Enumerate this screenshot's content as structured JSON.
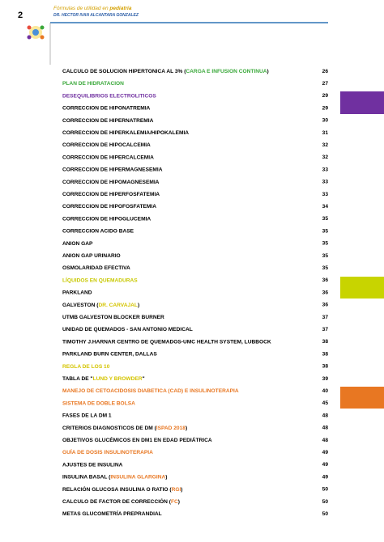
{
  "header": {
    "page": "2",
    "title": "Fórmulas de utilidad en ",
    "title_emphasis": "pediatría",
    "author": "DR. HECTOR IVAN ALCANTARA GONZALEZ"
  },
  "toc": [
    {
      "parts": [
        {
          "text": "CALCULO DE SOLUCION HIPERTONICA AL 3% ("
        },
        {
          "text": "CARGA E INFUSION CONTINUA",
          "color": "#3aa83a"
        },
        {
          "text": ")"
        }
      ],
      "page": 26
    },
    {
      "parts": [
        {
          "text": "PLAN DE HIDRATACION",
          "color": "#3aa83a"
        }
      ],
      "page": 27
    },
    {
      "parts": [
        {
          "text": "DESEQUILIBRIOS ELECTROLITICOS",
          "color": "#7030a0"
        }
      ],
      "page": 29
    },
    {
      "parts": [
        {
          "text": "CORRECCION DE HIPONATREMIA"
        }
      ],
      "page": 29
    },
    {
      "parts": [
        {
          "text": "CORRECCION DE HIPERNATREMIA"
        }
      ],
      "page": 30
    },
    {
      "parts": [
        {
          "text": "CORRECCION DE HIPERKALEMIA/HIPOKALEMIA"
        }
      ],
      "page": 31
    },
    {
      "parts": [
        {
          "text": "CORRECCION DE HIPOCALCEMIA"
        }
      ],
      "page": 32
    },
    {
      "parts": [
        {
          "text": "CORRECCION DE HIPERCALCEMIA"
        }
      ],
      "page": 32
    },
    {
      "parts": [
        {
          "text": "CORRECCION DE HIPERMAGNESEMIA"
        }
      ],
      "page": 33
    },
    {
      "parts": [
        {
          "text": "CORRECCION DE HIPOMAGNESEMIA"
        }
      ],
      "page": 33
    },
    {
      "parts": [
        {
          "text": "CORRECCION DE HIPERFOSFATEMIA"
        }
      ],
      "page": 33
    },
    {
      "parts": [
        {
          "text": "CORRECCION DE HIPOFOSFATEMIA"
        }
      ],
      "page": 34
    },
    {
      "parts": [
        {
          "text": "CORRECCION DE HIPOGLUCEMIA"
        }
      ],
      "page": 35
    },
    {
      "parts": [
        {
          "text": "CORRECCION ACIDO BASE"
        }
      ],
      "page": 35
    },
    {
      "parts": [
        {
          "text": "ANION GAP"
        }
      ],
      "page": 35
    },
    {
      "parts": [
        {
          "text": "ANION GAP URINARIO"
        }
      ],
      "page": 35
    },
    {
      "parts": [
        {
          "text": "OSMOLARIDAD EFECTIVA"
        }
      ],
      "page": 35
    },
    {
      "parts": [
        {
          "text": "LÍQUIDOS EN QUEMADURAS",
          "color": "#c8c800"
        }
      ],
      "page": 36
    },
    {
      "parts": [
        {
          "text": "PARKLAND"
        }
      ],
      "page": 36
    },
    {
      "parts": [
        {
          "text": "GALVESTON ("
        },
        {
          "text": "DR. CARVAJAL",
          "color": "#d4c400"
        },
        {
          "text": ")"
        }
      ],
      "page": 36
    },
    {
      "parts": [
        {
          "text": "UTMB GALVESTON BLOCKER BURNER"
        }
      ],
      "page": 37
    },
    {
      "parts": [
        {
          "text": "UNIDAD DE QUEMADOS - SAN ANTONIO MEDICAL"
        }
      ],
      "page": 37
    },
    {
      "parts": [
        {
          "text": "TIMOTHY J.HARNAR CENTRO DE QUEMADOS-UMC HEALTH SYSTEM, LUBBOCK"
        }
      ],
      "page": 38
    },
    {
      "parts": [
        {
          "text": "PARKLAND BURN CENTER, DALLAS"
        }
      ],
      "page": 38
    },
    {
      "parts": [
        {
          "text": "REGLA DE LOS 10",
          "color": "#d4c400"
        }
      ],
      "page": 38
    },
    {
      "parts": [
        {
          "text": "TABLA DE \""
        },
        {
          "text": "LUND Y BROWDER",
          "color": "#d4c400"
        },
        {
          "text": "\""
        }
      ],
      "page": 39
    },
    {
      "parts": [
        {
          "text": "MANEJO DE CETOACIDOSIS DIABETICA (CAD) E INSULINOTERAPIA",
          "color": "#e87722"
        }
      ],
      "page": 40
    },
    {
      "parts": [
        {
          "text": "SISTEMA DE DOBLE BOLSA",
          "color": "#e87722"
        }
      ],
      "page": 45
    },
    {
      "parts": [
        {
          "text": "FASES DE LA DM 1"
        }
      ],
      "page": 48
    },
    {
      "parts": [
        {
          "text": "CRITERIOS DIAGNOSTICOS DE DM ("
        },
        {
          "text": "ISPAD 2018",
          "color": "#e87722"
        },
        {
          "text": ")"
        }
      ],
      "page": 48
    },
    {
      "parts": [
        {
          "text": "OBJETIVOS GLUCÉMICOS EN DM1 EN EDAD PEDIÁTRICA"
        }
      ],
      "page": 48
    },
    {
      "parts": [
        {
          "text": "GUÍA DE DOSIS INSULINOTERAPIA",
          "color": "#e87722"
        }
      ],
      "page": 49
    },
    {
      "parts": [
        {
          "text": "AJUSTES DE INSULINA"
        }
      ],
      "page": 49
    },
    {
      "parts": [
        {
          "text": "INSULINA BASAL ("
        },
        {
          "text": "INSULINA GLARGINA",
          "color": "#e87722"
        },
        {
          "text": ")"
        }
      ],
      "page": 49
    },
    {
      "parts": [
        {
          "text": "RELACIÓN GLUCOSA INSULINA O RATIO ("
        },
        {
          "text": "RGI",
          "color": "#e87722"
        },
        {
          "text": ")"
        }
      ],
      "page": 50
    },
    {
      "parts": [
        {
          "text": "CALCULO DE FACTOR DE CORRECCIÓN ("
        },
        {
          "text": "FC",
          "color": "#e87722"
        },
        {
          "text": ")"
        }
      ],
      "page": 50
    },
    {
      "parts": [
        {
          "text": "METAS GLUCOMETRÍA PREPRANDIAL"
        }
      ],
      "page": 50
    }
  ]
}
